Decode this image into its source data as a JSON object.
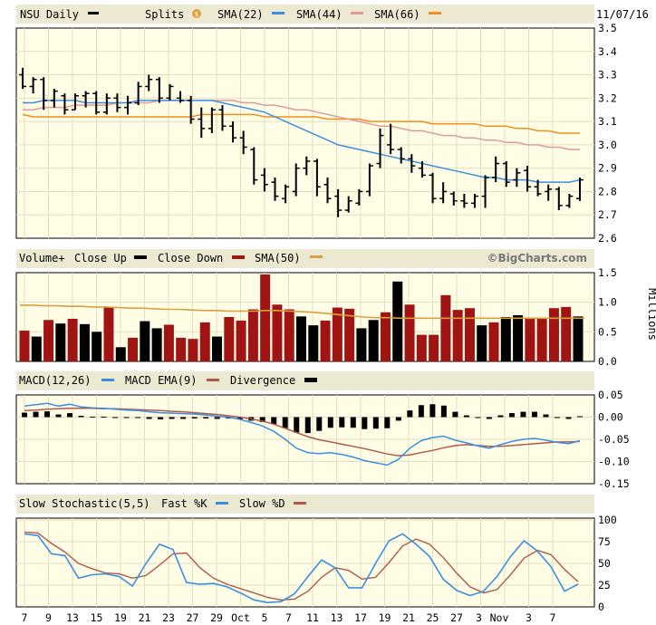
{
  "header": {
    "symbol_label": "NSU Daily",
    "splits_label": "Splits",
    "date": "11/07/16",
    "watermark": "©BigCharts.com"
  },
  "colors": {
    "panel_bg": "#fffde6",
    "grid": "#e2dfbf",
    "band_bg": "#ece9d2",
    "sma22": "#3c8fe0",
    "sma44": "#e09a9a",
    "sma66": "#f0901e",
    "vol_up": "#000000",
    "vol_down": "#a01414",
    "vol_sma": "#d8a040",
    "macd": "#3c8fe0",
    "macd_ema": "#b05a4a",
    "fastk": "#3c8fe0",
    "slowd": "#b05a4a"
  },
  "chart_data": [
    {
      "type": "ohlc",
      "title": "NSU Daily",
      "legend": [
        "Splits",
        "SMA(22)",
        "SMA(44)",
        "SMA(66)"
      ],
      "ylim": [
        2.6,
        3.5
      ],
      "yticks": [
        "3.5",
        "3.4",
        "3.3",
        "3.2",
        "3.1",
        "3.0",
        "2.9",
        "2.8",
        "2.7",
        "2.6"
      ],
      "x_labels": [
        "7",
        "9",
        "13",
        "15",
        "19",
        "21",
        "23",
        "27",
        "29",
        "Oct",
        "5",
        "7",
        "11",
        "13",
        "17",
        "19",
        "21",
        "25",
        "27",
        "3",
        "Nov",
        "3",
        "7"
      ],
      "bars": [
        {
          "o": 3.3,
          "h": 3.33,
          "l": 3.24,
          "c": 3.25
        },
        {
          "o": 3.25,
          "h": 3.29,
          "l": 3.22,
          "c": 3.28
        },
        {
          "o": 3.28,
          "h": 3.29,
          "l": 3.15,
          "c": 3.19
        },
        {
          "o": 3.19,
          "h": 3.24,
          "l": 3.16,
          "c": 3.23
        },
        {
          "o": 3.21,
          "h": 3.22,
          "l": 3.13,
          "c": 3.15
        },
        {
          "o": 3.15,
          "h": 3.22,
          "l": 3.15,
          "c": 3.21
        },
        {
          "o": 3.21,
          "h": 3.23,
          "l": 3.16,
          "c": 3.22
        },
        {
          "o": 3.22,
          "h": 3.23,
          "l": 3.13,
          "c": 3.14
        },
        {
          "o": 3.14,
          "h": 3.22,
          "l": 3.13,
          "c": 3.2
        },
        {
          "o": 3.2,
          "h": 3.22,
          "l": 3.14,
          "c": 3.16
        },
        {
          "o": 3.16,
          "h": 3.21,
          "l": 3.13,
          "c": 3.18
        },
        {
          "o": 3.18,
          "h": 3.27,
          "l": 3.17,
          "c": 3.25
        },
        {
          "o": 3.25,
          "h": 3.3,
          "l": 3.23,
          "c": 3.28
        },
        {
          "o": 3.28,
          "h": 3.29,
          "l": 3.18,
          "c": 3.2
        },
        {
          "o": 3.2,
          "h": 3.26,
          "l": 3.19,
          "c": 3.25
        },
        {
          "o": 3.2,
          "h": 3.23,
          "l": 3.18,
          "c": 3.19
        },
        {
          "o": 3.19,
          "h": 3.21,
          "l": 3.09,
          "c": 3.11
        },
        {
          "o": 3.11,
          "h": 3.16,
          "l": 3.03,
          "c": 3.07
        },
        {
          "o": 3.07,
          "h": 3.16,
          "l": 3.05,
          "c": 3.15
        },
        {
          "o": 3.15,
          "h": 3.17,
          "l": 3.06,
          "c": 3.08
        },
        {
          "o": 3.08,
          "h": 3.1,
          "l": 3.01,
          "c": 3.03
        },
        {
          "o": 3.03,
          "h": 3.06,
          "l": 2.96,
          "c": 2.99
        },
        {
          "o": 2.98,
          "h": 2.99,
          "l": 2.83,
          "c": 2.85
        },
        {
          "o": 2.87,
          "h": 2.9,
          "l": 2.8,
          "c": 2.83
        },
        {
          "o": 2.84,
          "h": 2.86,
          "l": 2.76,
          "c": 2.78
        },
        {
          "o": 2.77,
          "h": 2.83,
          "l": 2.75,
          "c": 2.82
        },
        {
          "o": 2.8,
          "h": 2.92,
          "l": 2.78,
          "c": 2.9
        },
        {
          "o": 2.9,
          "h": 2.95,
          "l": 2.87,
          "c": 2.93
        },
        {
          "o": 2.93,
          "h": 2.94,
          "l": 2.78,
          "c": 2.82
        },
        {
          "o": 2.83,
          "h": 2.86,
          "l": 2.75,
          "c": 2.77
        },
        {
          "o": 2.78,
          "h": 2.81,
          "l": 2.69,
          "c": 2.72
        },
        {
          "o": 2.72,
          "h": 2.78,
          "l": 2.71,
          "c": 2.76
        },
        {
          "o": 2.75,
          "h": 2.81,
          "l": 2.74,
          "c": 2.8
        },
        {
          "o": 2.8,
          "h": 2.92,
          "l": 2.78,
          "c": 2.91
        },
        {
          "o": 2.92,
          "h": 3.07,
          "l": 2.9,
          "c": 3.04
        },
        {
          "o": 3.0,
          "h": 3.09,
          "l": 2.96,
          "c": 2.98
        },
        {
          "o": 2.98,
          "h": 2.99,
          "l": 2.92,
          "c": 2.94
        },
        {
          "o": 2.94,
          "h": 2.96,
          "l": 2.88,
          "c": 2.91
        },
        {
          "o": 2.9,
          "h": 2.93,
          "l": 2.86,
          "c": 2.87
        },
        {
          "o": 2.87,
          "h": 2.88,
          "l": 2.75,
          "c": 2.77
        },
        {
          "o": 2.77,
          "h": 2.84,
          "l": 2.75,
          "c": 2.8
        },
        {
          "o": 2.79,
          "h": 2.8,
          "l": 2.74,
          "c": 2.76
        },
        {
          "o": 2.76,
          "h": 2.79,
          "l": 2.73,
          "c": 2.75
        },
        {
          "o": 2.75,
          "h": 2.79,
          "l": 2.73,
          "c": 2.78
        },
        {
          "o": 2.78,
          "h": 2.87,
          "l": 2.73,
          "c": 2.86
        },
        {
          "o": 2.86,
          "h": 2.95,
          "l": 2.84,
          "c": 2.92
        },
        {
          "o": 2.92,
          "h": 2.93,
          "l": 2.82,
          "c": 2.84
        },
        {
          "o": 2.85,
          "h": 2.9,
          "l": 2.82,
          "c": 2.88
        },
        {
          "o": 2.89,
          "h": 2.91,
          "l": 2.8,
          "c": 2.82
        },
        {
          "o": 2.82,
          "h": 2.85,
          "l": 2.78,
          "c": 2.79
        },
        {
          "o": 2.8,
          "h": 2.83,
          "l": 2.76,
          "c": 2.81
        },
        {
          "o": 2.81,
          "h": 2.82,
          "l": 2.72,
          "c": 2.74
        },
        {
          "o": 2.74,
          "h": 2.79,
          "l": 2.73,
          "c": 2.78
        },
        {
          "o": 2.77,
          "h": 2.86,
          "l": 2.76,
          "c": 2.85
        }
      ],
      "series": [
        {
          "name": "SMA(22)",
          "values": [
            3.18,
            3.18,
            3.19,
            3.19,
            3.19,
            3.19,
            3.18,
            3.18,
            3.18,
            3.18,
            3.18,
            3.19,
            3.19,
            3.19,
            3.19,
            3.19,
            3.19,
            3.19,
            3.19,
            3.18,
            3.17,
            3.16,
            3.15,
            3.14,
            3.12,
            3.1,
            3.08,
            3.06,
            3.04,
            3.02,
            3.0,
            2.99,
            2.98,
            2.97,
            2.96,
            2.95,
            2.94,
            2.93,
            2.92,
            2.91,
            2.9,
            2.89,
            2.88,
            2.87,
            2.86,
            2.86,
            2.85,
            2.85,
            2.85,
            2.84,
            2.84,
            2.84,
            2.84,
            2.85
          ]
        },
        {
          "name": "SMA(44)",
          "values": [
            3.15,
            3.15,
            3.16,
            3.16,
            3.16,
            3.17,
            3.17,
            3.17,
            3.17,
            3.18,
            3.18,
            3.18,
            3.18,
            3.19,
            3.19,
            3.19,
            3.19,
            3.19,
            3.19,
            3.19,
            3.19,
            3.18,
            3.18,
            3.17,
            3.17,
            3.16,
            3.15,
            3.15,
            3.14,
            3.13,
            3.12,
            3.11,
            3.1,
            3.09,
            3.08,
            3.08,
            3.07,
            3.06,
            3.06,
            3.05,
            3.04,
            3.04,
            3.03,
            3.03,
            3.02,
            3.02,
            3.01,
            3.01,
            3.0,
            3.0,
            2.99,
            2.99,
            2.98,
            2.98
          ]
        },
        {
          "name": "SMA(66)",
          "values": [
            3.13,
            3.12,
            3.12,
            3.12,
            3.12,
            3.12,
            3.12,
            3.12,
            3.12,
            3.12,
            3.12,
            3.12,
            3.12,
            3.12,
            3.12,
            3.12,
            3.12,
            3.13,
            3.13,
            3.13,
            3.13,
            3.13,
            3.13,
            3.12,
            3.12,
            3.12,
            3.12,
            3.12,
            3.12,
            3.11,
            3.11,
            3.11,
            3.11,
            3.1,
            3.1,
            3.1,
            3.1,
            3.1,
            3.1,
            3.09,
            3.09,
            3.09,
            3.09,
            3.09,
            3.08,
            3.08,
            3.08,
            3.07,
            3.07,
            3.06,
            3.06,
            3.05,
            3.05,
            3.05
          ]
        }
      ]
    },
    {
      "type": "bar",
      "legend": [
        "Volume+",
        "Close Up",
        "Close Down",
        "SMA(50)"
      ],
      "ylabel": "Millions",
      "ylim": [
        0,
        1.5
      ],
      "yticks": [
        "1.5",
        "1.0",
        "0.5",
        "0.0"
      ],
      "bars": [
        {
          "v": 0.52,
          "dir": "down"
        },
        {
          "v": 0.42,
          "dir": "up"
        },
        {
          "v": 0.7,
          "dir": "down"
        },
        {
          "v": 0.64,
          "dir": "up"
        },
        {
          "v": 0.72,
          "dir": "down"
        },
        {
          "v": 0.63,
          "dir": "up"
        },
        {
          "v": 0.5,
          "dir": "up"
        },
        {
          "v": 0.92,
          "dir": "down"
        },
        {
          "v": 0.24,
          "dir": "up"
        },
        {
          "v": 0.4,
          "dir": "down"
        },
        {
          "v": 0.68,
          "dir": "up"
        },
        {
          "v": 0.56,
          "dir": "up"
        },
        {
          "v": 0.62,
          "dir": "down"
        },
        {
          "v": 0.4,
          "dir": "down"
        },
        {
          "v": 0.38,
          "dir": "down"
        },
        {
          "v": 0.66,
          "dir": "down"
        },
        {
          "v": 0.42,
          "dir": "up"
        },
        {
          "v": 0.75,
          "dir": "down"
        },
        {
          "v": 0.69,
          "dir": "down"
        },
        {
          "v": 0.88,
          "dir": "down"
        },
        {
          "v": 1.47,
          "dir": "down"
        },
        {
          "v": 0.96,
          "dir": "down"
        },
        {
          "v": 0.88,
          "dir": "down"
        },
        {
          "v": 0.76,
          "dir": "up"
        },
        {
          "v": 0.61,
          "dir": "up"
        },
        {
          "v": 0.69,
          "dir": "down"
        },
        {
          "v": 0.91,
          "dir": "down"
        },
        {
          "v": 0.89,
          "dir": "down"
        },
        {
          "v": 0.56,
          "dir": "up"
        },
        {
          "v": 0.7,
          "dir": "up"
        },
        {
          "v": 0.83,
          "dir": "down"
        },
        {
          "v": 1.35,
          "dir": "up"
        },
        {
          "v": 0.96,
          "dir": "down"
        },
        {
          "v": 0.45,
          "dir": "down"
        },
        {
          "v": 0.45,
          "dir": "down"
        },
        {
          "v": 1.12,
          "dir": "down"
        },
        {
          "v": 0.87,
          "dir": "down"
        },
        {
          "v": 0.9,
          "dir": "down"
        },
        {
          "v": 0.61,
          "dir": "up"
        },
        {
          "v": 0.66,
          "dir": "down"
        },
        {
          "v": 0.75,
          "dir": "up"
        },
        {
          "v": 0.78,
          "dir": "up"
        },
        {
          "v": 0.74,
          "dir": "down"
        },
        {
          "v": 0.74,
          "dir": "down"
        },
        {
          "v": 0.9,
          "dir": "down"
        },
        {
          "v": 0.92,
          "dir": "down"
        },
        {
          "v": 0.76,
          "dir": "up"
        }
      ],
      "series": [
        {
          "name": "SMA(50)",
          "values": [
            0.95,
            0.95,
            0.94,
            0.94,
            0.93,
            0.93,
            0.92,
            0.92,
            0.91,
            0.9,
            0.9,
            0.89,
            0.88,
            0.88,
            0.87,
            0.86,
            0.86,
            0.85,
            0.85,
            0.85,
            0.86,
            0.86,
            0.85,
            0.84,
            0.83,
            0.81,
            0.79,
            0.77,
            0.75,
            0.74,
            0.74,
            0.73,
            0.73,
            0.73,
            0.73,
            0.73,
            0.73,
            0.73,
            0.73,
            0.73,
            0.73,
            0.73,
            0.73,
            0.73,
            0.73,
            0.73,
            0.73
          ]
        }
      ]
    },
    {
      "type": "line",
      "legend": [
        "MACD(12,26)",
        "MACD EMA(9)",
        "Divergence"
      ],
      "ylim": [
        -0.15,
        0.05
      ],
      "yticks": [
        "0.05",
        "0.00",
        "-0.05",
        "-0.10",
        "-0.15"
      ],
      "series": [
        {
          "name": "MACD(12,26)",
          "values": [
            0.025,
            0.028,
            0.031,
            0.025,
            0.029,
            0.023,
            0.021,
            0.02,
            0.018,
            0.016,
            0.015,
            0.012,
            0.01,
            0.009,
            0.008,
            0.007,
            0.005,
            0.002,
            0.0,
            -0.005,
            -0.012,
            -0.02,
            -0.032,
            -0.05,
            -0.07,
            -0.08,
            -0.082,
            -0.08,
            -0.084,
            -0.09,
            -0.098,
            -0.103,
            -0.108,
            -0.095,
            -0.07,
            -0.053,
            -0.046,
            -0.043,
            -0.052,
            -0.058,
            -0.065,
            -0.07,
            -0.062,
            -0.055,
            -0.05,
            -0.048,
            -0.052,
            -0.057,
            -0.06,
            -0.053
          ]
        },
        {
          "name": "MACD EMA(9)",
          "values": [
            0.015,
            0.016,
            0.018,
            0.019,
            0.02,
            0.02,
            0.02,
            0.019,
            0.019,
            0.018,
            0.017,
            0.016,
            0.015,
            0.013,
            0.012,
            0.01,
            0.008,
            0.006,
            0.003,
            0.0,
            -0.004,
            -0.009,
            -0.016,
            -0.025,
            -0.035,
            -0.044,
            -0.051,
            -0.056,
            -0.061,
            -0.066,
            -0.071,
            -0.077,
            -0.083,
            -0.087,
            -0.085,
            -0.08,
            -0.075,
            -0.069,
            -0.064,
            -0.062,
            -0.064,
            -0.066,
            -0.066,
            -0.064,
            -0.062,
            -0.06,
            -0.058,
            -0.056,
            -0.056,
            -0.055
          ]
        },
        {
          "name": "Divergence",
          "values": [
            0.01,
            0.012,
            0.013,
            0.006,
            0.009,
            0.003,
            0.001,
            0.001,
            -0.001,
            -0.002,
            -0.002,
            -0.004,
            -0.005,
            -0.004,
            -0.004,
            -0.003,
            -0.003,
            -0.004,
            -0.003,
            -0.005,
            -0.008,
            -0.011,
            -0.016,
            -0.025,
            -0.035,
            -0.036,
            -0.031,
            -0.024,
            -0.023,
            -0.024,
            -0.027,
            -0.026,
            -0.025,
            -0.008,
            0.015,
            0.027,
            0.029,
            0.026,
            0.012,
            0.004,
            -0.001,
            -0.004,
            0.004,
            0.009,
            0.012,
            0.012,
            0.006,
            -0.001,
            -0.004,
            0.002
          ]
        }
      ]
    },
    {
      "type": "line",
      "legend": [
        "Slow Stochastic(5,5)",
        "Fast %K",
        "Slow %D"
      ],
      "ylim": [
        0,
        100
      ],
      "yticks": [
        "100",
        "75",
        "50",
        "25",
        "0"
      ],
      "series": [
        {
          "name": "Fast %K",
          "values": [
            84,
            82,
            61,
            59,
            33,
            37,
            38,
            35,
            24,
            50,
            72,
            66,
            28,
            26,
            27,
            23,
            16,
            8,
            5,
            6,
            15,
            35,
            54,
            45,
            22,
            22,
            50,
            76,
            84,
            72,
            58,
            32,
            19,
            13,
            18,
            35,
            58,
            76,
            64,
            46,
            18,
            26
          ]
        },
        {
          "name": "Slow %D",
          "values": [
            86,
            85,
            73,
            63,
            50,
            44,
            39,
            38,
            33,
            36,
            48,
            61,
            62,
            45,
            33,
            26,
            21,
            16,
            11,
            8,
            9,
            18,
            34,
            45,
            42,
            32,
            34,
            51,
            70,
            78,
            72,
            57,
            39,
            23,
            16,
            20,
            37,
            56,
            65,
            60,
            43,
            29
          ]
        }
      ]
    }
  ]
}
